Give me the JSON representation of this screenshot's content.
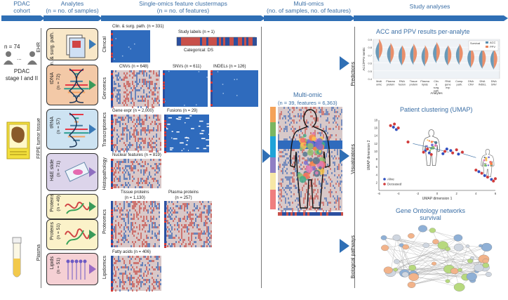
{
  "headers": {
    "cohort": "PDAC\ncohort",
    "analytes": "Analytes\n(n = no. of samples)",
    "single": "Single-omics feature clustermaps\n(n = no. of features)",
    "multi": "Multi-omics\n(no. of samples, no. of features)",
    "study": "Study analyses"
  },
  "cohort": {
    "n74": "n = 74",
    "ehr": "EHR",
    "dots": "...",
    "pdac": "PDAC\nstage I and II",
    "ffpe": "FFPE tumor tissue",
    "plasma": "Plasma"
  },
  "analytes": [
    {
      "label": "Clin. & surg. path.",
      "n": "",
      "color": "#f8e7c8"
    },
    {
      "label": "tDNA",
      "n": "(n = 72)",
      "color": "#f3c9a7"
    },
    {
      "label": "tRNA",
      "n": "(n = 57)",
      "color": "#cde3f2"
    },
    {
      "label": "H&E slide",
      "n": "(n = 71)",
      "color": "#dcd4ea"
    },
    {
      "label": "Proteins",
      "n": "(n = 49)",
      "color": "#fbf2c9"
    },
    {
      "label": "Proteins",
      "n": "(n = 51)",
      "color": "#fbf2c9"
    },
    {
      "label": "Lipids",
      "n": "(n = 51)",
      "color": "#f5d0d4"
    }
  ],
  "categories": {
    "clinical": "Clinical",
    "genomics": "Genomics",
    "transcriptomics": "Transcriptomics",
    "histopathology": "Histopathology",
    "proteomics": "Proteomics",
    "lipidomics": "Lipidomics"
  },
  "clustermaps": {
    "clin": "Clin. & surg. path. (n = 331)",
    "study_labels": "Study labels (n = 1)",
    "categorical": "Categorical: DS",
    "cnvs": "CNVs (n = 648)",
    "snvs": "SNVs (n = 611)",
    "indels": "INDELs (n = 126)",
    "gene_expr": "Gene expr (n = 2,000)",
    "fusions": "Fusions (n = 29)",
    "nuclear": "Nuclear features (n = 819)",
    "tissue_proteins": "Tissue proteins\n(n = 1,130)",
    "plasma_proteins": "Plasma proteins\n(n = 257)",
    "fatty_acids": "Fatty acids (n = 406)"
  },
  "multiomic": {
    "title": "Multi-omic",
    "subtitle": "(n = 39, features = 6,363)"
  },
  "study": {
    "predictions": "Predictions",
    "visualizations": "Visualizations",
    "pathways": "Biological pathways",
    "acc_title": "ACC and PPV results per-analyte",
    "acc_ylabel": "ACC/PPV metric",
    "acc_xlabel": "Analytes",
    "acc_legend_title": "Survival",
    "acc_legend_acc": "ACC",
    "acc_legend_ppv": "PPV",
    "umap_title": "Patient clustering (UMAP)",
    "umap_x": "UMAP dimension 1",
    "umap_y": "UMAP dimension 2",
    "alive": "Alive",
    "deceased": "Deceased",
    "go_title": "Gene Ontology networks\nsurvival"
  },
  "chart_data": [
    {
      "type": "violin",
      "title": "ACC and PPV results per-analyte",
      "ylabel": "ACC/PPV metric",
      "xlabel": "Analytes",
      "categories": [
        "Multi omic",
        "Plasma protein",
        "RNA fusion",
        "Tissue protein",
        "Plasma lipids",
        "Clin. & surg. path.",
        "RNA gene exp",
        "Comp. path.",
        "DNA CNV",
        "DNA INDEL",
        "DNA SNV"
      ],
      "series": [
        {
          "name": "ACC",
          "color": "#5b8fb0",
          "values": [
            0.74,
            0.71,
            0.69,
            0.7,
            0.68,
            0.72,
            0.69,
            0.7,
            0.66,
            0.65,
            0.64
          ]
        },
        {
          "name": "PPV",
          "color": "#e8845c",
          "values": [
            0.78,
            0.73,
            0.7,
            0.72,
            0.7,
            0.74,
            0.7,
            0.72,
            0.67,
            0.66,
            0.65
          ]
        }
      ],
      "ylim": [
        0.4,
        0.9
      ],
      "yticks": [
        "0.9",
        "0.8",
        "0.7",
        "0.6",
        "0.5",
        "0.4"
      ],
      "legend": "top-right"
    },
    {
      "type": "scatter",
      "title": "Patient clustering (UMAP)",
      "xlabel": "UMAP dimension 1",
      "ylabel": "UMAP dimension 2",
      "xlim": [
        -6,
        6
      ],
      "ylim": [
        0,
        18
      ],
      "xticks": [
        "-6",
        "-4",
        "-2",
        "0",
        "2",
        "4",
        "6"
      ],
      "yticks": [
        "18",
        "16",
        "14",
        "12",
        "10",
        "8",
        "6",
        "4",
        "2"
      ],
      "series": [
        {
          "name": "Alive",
          "color": "#2f4fbf",
          "points": [
            [
              -4.5,
              16.2
            ],
            [
              -4.2,
              15.6
            ],
            [
              -1.2,
              10.2
            ],
            [
              -0.8,
              9.6
            ],
            [
              0.6,
              9.4
            ],
            [
              1.4,
              10.2
            ],
            [
              2.2,
              9.3
            ],
            [
              4.3,
              4.8
            ],
            [
              4.9,
              3.8
            ],
            [
              5.6,
              2.8
            ],
            [
              1.0,
              10.6
            ]
          ]
        },
        {
          "name": "Deceased",
          "color": "#d03a3a",
          "points": [
            [
              -4.8,
              16.6
            ],
            [
              -4.4,
              17.0
            ],
            [
              -4.0,
              16.0
            ],
            [
              -1.4,
              9.8
            ],
            [
              -1.0,
              10.6
            ],
            [
              -0.6,
              9.2
            ],
            [
              0.8,
              10.0
            ],
            [
              1.6,
              9.6
            ],
            [
              2.0,
              10.4
            ],
            [
              2.6,
              9.8
            ],
            [
              4.0,
              5.2
            ],
            [
              4.6,
              4.4
            ],
            [
              5.2,
              3.4
            ],
            [
              5.8,
              2.4
            ],
            [
              6.0,
              3.0
            ],
            [
              -3.0,
              12.4
            ]
          ]
        }
      ],
      "legend": "bottom-left"
    }
  ]
}
